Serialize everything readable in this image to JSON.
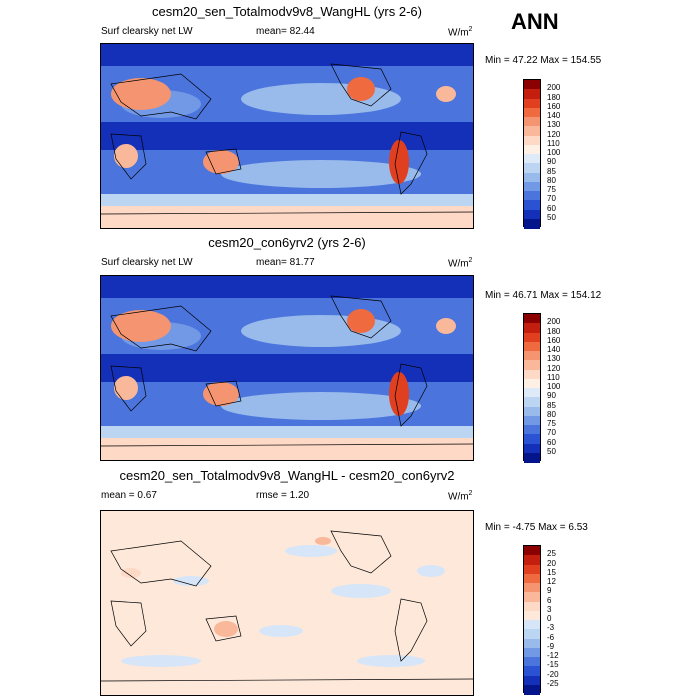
{
  "season": "ANN",
  "panels": [
    {
      "title": "cesm20_sen_Totalmodv9v8_WangHL (yrs 2-6)",
      "field": "Surf clearsky net LW",
      "mean_label": "mean=",
      "mean_value": "82.44",
      "units": "W/m",
      "units_sup": "2",
      "minmax": "Min =  47.22 Max = 154.55",
      "type": "abs"
    },
    {
      "title": "cesm20_con6yrv2 (yrs 2-6)",
      "field": "Surf clearsky net LW",
      "mean_label": "mean=",
      "mean_value": "81.77",
      "units": "W/m",
      "units_sup": "2",
      "minmax": "Min =  46.71 Max = 154.12",
      "type": "abs"
    },
    {
      "title": "cesm20_sen_Totalmodv9v8_WangHL - cesm20_con6yrv2",
      "mean_text": "mean =   0.67",
      "rmse_text": "rmse =   1.20",
      "units": "W/m",
      "units_sup": "2",
      "minmax": "Min =  -4.75 Max =   6.53",
      "type": "diff"
    }
  ],
  "colorbars": {
    "abs": {
      "labels": [
        "200",
        "180",
        "160",
        "140",
        "130",
        "120",
        "110",
        "100",
        "90",
        "85",
        "80",
        "75",
        "70",
        "60",
        "50"
      ],
      "colors": [
        "#8b0000",
        "#c41e0e",
        "#e04020",
        "#f06a40",
        "#f59470",
        "#fab89a",
        "#fdd9c6",
        "#fff0e6",
        "#dfeaf8",
        "#bcd5f2",
        "#98bbec",
        "#7299e6",
        "#4b74dc",
        "#2a52d2",
        "#1530b8",
        "#04158c"
      ]
    },
    "diff": {
      "labels": [
        "25",
        "20",
        "15",
        "12",
        "9",
        "6",
        "3",
        "0",
        "-3",
        "-6",
        "-9",
        "-12",
        "-15",
        "-20",
        "-25"
      ],
      "colors": [
        "#8b0000",
        "#c41e0e",
        "#e04020",
        "#f06a40",
        "#f59470",
        "#fab89a",
        "#fdd9c6",
        "#fde8da",
        "#d6e6f8",
        "#bcd5f2",
        "#98bbec",
        "#7299e6",
        "#4b74dc",
        "#2a52d2",
        "#1530b8",
        "#04158c"
      ]
    }
  }
}
